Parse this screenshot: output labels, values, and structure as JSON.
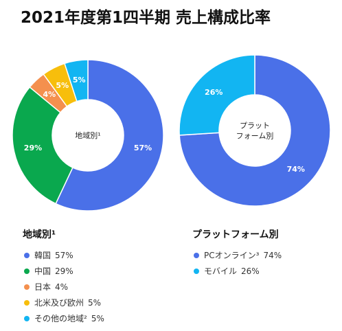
{
  "title": "2021年度第1四半期 売上構成比率",
  "chart_data": [
    {
      "type": "pie",
      "center_label": "地域別¹",
      "legend_title": "地域別¹",
      "categories": [
        "韓国",
        "中国",
        "日本",
        "北米及び欧州",
        "その他の地域²"
      ],
      "values": [
        57,
        29,
        4,
        5,
        5
      ],
      "value_labels": [
        "57%",
        "29%",
        "4%",
        "5%",
        "5%"
      ],
      "legend_values": [
        "57%",
        "29%",
        "4%",
        "5%",
        "5%"
      ],
      "colors": [
        "#4a70e8",
        "#0aa84e",
        "#f4904e",
        "#f7be0c",
        "#12b5f2"
      ],
      "legend_placement": "bottom"
    },
    {
      "type": "pie",
      "center_label": [
        "プラット",
        "フォーム別"
      ],
      "legend_title": "プラットフォーム別",
      "categories": [
        "PCオンライン³",
        "モバイル"
      ],
      "values": [
        74,
        26
      ],
      "value_labels": [
        "74%",
        "26%"
      ],
      "legend_values": [
        "74%",
        "26%"
      ],
      "colors": [
        "#4a70e8",
        "#12b5f2"
      ],
      "legend_placement": "bottom"
    }
  ]
}
